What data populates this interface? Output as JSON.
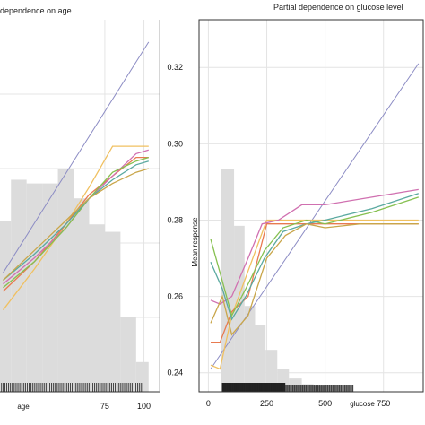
{
  "chart_data": [
    {
      "type": "line",
      "title": "Partial dependence on age",
      "visible_title": "dependence on age",
      "xlabel": "age",
      "ylabel": "",
      "x_ticks": [
        75,
        100
      ],
      "xlim": [
        8,
        110
      ],
      "ylim": [
        0,
        1
      ],
      "grid": true,
      "histogram": {
        "bins": [
          {
            "x0": 8,
            "x1": 15,
            "h": 0.46
          },
          {
            "x0": 15,
            "x1": 25,
            "h": 0.57
          },
          {
            "x0": 25,
            "x1": 35,
            "h": 0.56
          },
          {
            "x0": 35,
            "x1": 45,
            "h": 0.56
          },
          {
            "x0": 45,
            "x1": 55,
            "h": 0.6
          },
          {
            "x0": 55,
            "x1": 65,
            "h": 0.52
          },
          {
            "x0": 65,
            "x1": 75,
            "h": 0.45
          },
          {
            "x0": 75,
            "x1": 85,
            "h": 0.43
          },
          {
            "x0": 85,
            "x1": 95,
            "h": 0.2
          },
          {
            "x0": 95,
            "x1": 103,
            "h": 0.08
          }
        ]
      },
      "series": [
        {
          "color": "#8c8cc4",
          "x": [
            10,
            103
          ],
          "y": [
            0.32,
            0.94
          ]
        },
        {
          "color": "#f0c060",
          "x": [
            10,
            30,
            50,
            65,
            80,
            103
          ],
          "y": [
            0.22,
            0.33,
            0.45,
            0.55,
            0.66,
            0.66
          ]
        },
        {
          "color": "#e87a50",
          "x": [
            10,
            30,
            50,
            65,
            80,
            95,
            103
          ],
          "y": [
            0.27,
            0.35,
            0.45,
            0.53,
            0.58,
            0.63,
            0.63
          ]
        },
        {
          "color": "#d070b0",
          "x": [
            10,
            30,
            50,
            65,
            80,
            95,
            103
          ],
          "y": [
            0.29,
            0.36,
            0.44,
            0.52,
            0.58,
            0.64,
            0.65
          ]
        },
        {
          "color": "#86c050",
          "x": [
            10,
            30,
            50,
            65,
            80,
            95,
            103
          ],
          "y": [
            0.28,
            0.35,
            0.44,
            0.52,
            0.59,
            0.62,
            0.63
          ]
        },
        {
          "color": "#5aa9a0",
          "x": [
            10,
            30,
            50,
            65,
            80,
            95,
            103
          ],
          "y": [
            0.3,
            0.37,
            0.45,
            0.52,
            0.57,
            0.61,
            0.62
          ]
        },
        {
          "color": "#c9a64a",
          "x": [
            10,
            30,
            50,
            65,
            80,
            95,
            103
          ],
          "y": [
            0.3,
            0.38,
            0.46,
            0.52,
            0.56,
            0.59,
            0.6
          ]
        }
      ]
    },
    {
      "type": "line",
      "title": "Partial dependence on glucose level",
      "xlabel": "glucose",
      "ylabel": "Mean response",
      "x_ticks": [
        0,
        250,
        500,
        750
      ],
      "y_ticks": [
        0.24,
        0.26,
        0.28,
        0.3,
        0.32
      ],
      "xlim": [
        -40,
        920
      ],
      "ylim": [
        0.235,
        0.3325
      ],
      "grid": true,
      "histogram": {
        "bins": [
          {
            "x0": 55,
            "x1": 110,
            "h": 0.2935
          },
          {
            "x0": 110,
            "x1": 155,
            "h": 0.2785
          },
          {
            "x0": 155,
            "x1": 200,
            "h": 0.2575
          },
          {
            "x0": 200,
            "x1": 245,
            "h": 0.2525
          },
          {
            "x0": 245,
            "x1": 295,
            "h": 0.246
          },
          {
            "x0": 295,
            "x1": 345,
            "h": 0.241
          },
          {
            "x0": 345,
            "x1": 400,
            "h": 0.2385
          },
          {
            "x0": 400,
            "x1": 450,
            "h": 0.237
          },
          {
            "x0": 450,
            "x1": 500,
            "h": 0.2365
          }
        ]
      },
      "series": [
        {
          "color": "#8c8cc4",
          "x": [
            10,
            900
          ],
          "y": [
            0.241,
            0.321
          ]
        },
        {
          "color": "#f0c060",
          "x": [
            10,
            50,
            100,
            250,
            900
          ],
          "y": [
            0.242,
            0.241,
            0.255,
            0.28,
            0.28
          ]
        },
        {
          "color": "#e87a50",
          "x": [
            10,
            50,
            100,
            170,
            250,
            400,
            900
          ],
          "y": [
            0.248,
            0.248,
            0.256,
            0.26,
            0.279,
            0.279,
            0.279
          ]
        },
        {
          "color": "#d070b0",
          "x": [
            10,
            50,
            100,
            170,
            230,
            300,
            400,
            500,
            700,
            900
          ],
          "y": [
            0.259,
            0.258,
            0.26,
            0.27,
            0.279,
            0.28,
            0.284,
            0.284,
            0.286,
            0.288
          ]
        },
        {
          "color": "#86c050",
          "x": [
            10,
            60,
            100,
            160,
            240,
            320,
            420,
            500,
            700,
            900
          ],
          "y": [
            0.275,
            0.264,
            0.255,
            0.262,
            0.272,
            0.278,
            0.28,
            0.279,
            0.282,
            0.286
          ]
        },
        {
          "color": "#5aa9a0",
          "x": [
            10,
            60,
            100,
            160,
            240,
            320,
            420,
            500,
            700,
            900
          ],
          "y": [
            0.269,
            0.262,
            0.254,
            0.26,
            0.27,
            0.277,
            0.279,
            0.28,
            0.283,
            0.287
          ]
        },
        {
          "color": "#c9a64a",
          "x": [
            10,
            60,
            100,
            170,
            250,
            330,
            420,
            500,
            650,
            900
          ],
          "y": [
            0.253,
            0.26,
            0.25,
            0.255,
            0.27,
            0.276,
            0.279,
            0.278,
            0.279,
            0.279
          ]
        }
      ]
    }
  ]
}
